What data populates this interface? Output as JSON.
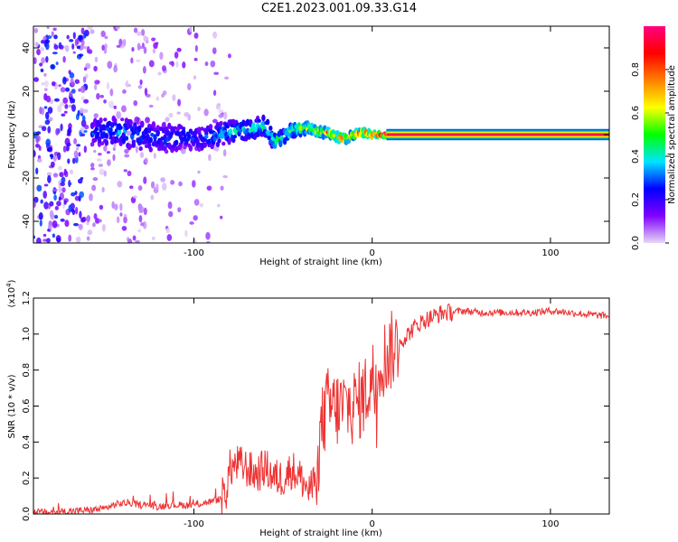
{
  "title": "C2E1.2023.001.09.33.G14",
  "chart_data": [
    {
      "type": "heatmap",
      "title": "C2E1.2023.001.09.33.G14",
      "xlabel": "Height of straight line (km)",
      "ylabel": "Frequency (Hz)",
      "xlim": [
        -190,
        133
      ],
      "ylim": [
        -50,
        50
      ],
      "x_ticks": [
        -100,
        0,
        100
      ],
      "x_tick_labels": [
        "-100",
        "0",
        "100"
      ],
      "y_ticks": [
        -40,
        -20,
        0,
        20,
        40
      ],
      "y_tick_labels": [
        "-40",
        "-20",
        "0",
        "20",
        "40"
      ],
      "colorbar": {
        "label": "Normalized spectral amplitude",
        "range": [
          0,
          1
        ],
        "ticks": [
          0.0,
          0.2,
          0.4,
          0.6,
          0.8
        ],
        "tick_labels": [
          "0.0",
          "0.2",
          "0.4",
          "0.6",
          "0.8"
        ],
        "colormap": [
          "#e6d8f5",
          "#8000ff",
          "#0000ff",
          "#00e5ff",
          "#00ff00",
          "#ffff00",
          "#ff8000",
          "#ff0000",
          "#ff0080"
        ]
      },
      "ridge": {
        "x": [
          -155,
          -145,
          -135,
          -125,
          -115,
          -105,
          -95,
          -88,
          -80,
          -72,
          -65,
          -60,
          -55,
          -50,
          -45,
          -40,
          -35,
          -30,
          -25,
          -20,
          -15,
          -10,
          -5,
          0,
          5,
          10,
          133
        ],
        "freq": [
          1,
          2,
          0,
          -1,
          -2,
          -1,
          -2,
          0,
          1,
          2,
          3,
          4,
          -3,
          -1,
          2,
          3,
          3,
          1,
          1,
          -1,
          -2,
          0,
          1,
          0,
          0,
          0,
          0
        ],
        "spread": [
          6,
          6,
          6,
          6,
          6,
          5,
          5,
          5,
          5,
          4,
          4,
          4,
          4,
          3,
          3,
          3,
          2,
          2,
          2,
          2,
          2,
          1.5,
          1.5,
          1,
          1,
          1,
          1
        ],
        "peak_amplitude": [
          0.3,
          0.35,
          0.35,
          0.3,
          0.3,
          0.3,
          0.3,
          0.35,
          0.4,
          0.45,
          0.45,
          0.45,
          0.5,
          0.5,
          0.55,
          0.6,
          0.7,
          0.75,
          0.8,
          0.8,
          0.85,
          0.85,
          0.9,
          0.95,
          0.97,
          1.0,
          1.0
        ]
      }
    },
    {
      "type": "line",
      "xlabel": "Height of straight line (km)",
      "ylabel": "SNR (10 * v/v)",
      "y_multiplier": "(x10",
      "y_multiplier_exp": "4",
      "y_multiplier_close": ")",
      "xlim": [
        -190,
        133
      ],
      "ylim": [
        0,
        1.2
      ],
      "x_ticks": [
        -100,
        0,
        100
      ],
      "x_tick_labels": [
        "-100",
        "0",
        "100"
      ],
      "y_ticks": [
        0.0,
        0.2,
        0.4,
        0.6,
        0.8,
        1.0,
        1.2
      ],
      "y_tick_labels": [
        "0.0",
        "0.2",
        "0.4",
        "0.6",
        "0.8",
        "1.0",
        "1.2"
      ],
      "color": "#ee3333",
      "series": [
        {
          "x": [
            -190,
            -180,
            -170,
            -160,
            -150,
            -145,
            -140,
            -135,
            -130,
            -125,
            -120,
            -115,
            -110,
            -105,
            -100,
            -95,
            -90,
            -86,
            -82,
            -80,
            -75,
            -70,
            -65,
            -60,
            -55,
            -50,
            -45,
            -40,
            -35,
            -32,
            -30,
            -28,
            -25,
            -20,
            -15,
            -10,
            -5,
            0,
            5,
            10,
            15,
            20,
            25,
            30,
            35,
            40,
            45,
            50,
            60,
            70,
            80,
            90,
            100,
            110,
            120,
            133
          ],
          "y": [
            0.01,
            0.01,
            0.015,
            0.02,
            0.03,
            0.05,
            0.06,
            0.06,
            0.05,
            0.05,
            0.04,
            0.05,
            0.05,
            0.05,
            0.05,
            0.06,
            0.07,
            0.08,
            0.12,
            0.25,
            0.28,
            0.25,
            0.22,
            0.26,
            0.2,
            0.2,
            0.25,
            0.2,
            0.12,
            0.18,
            0.35,
            0.5,
            0.6,
            0.58,
            0.6,
            0.6,
            0.65,
            0.75,
            0.85,
            0.9,
            0.95,
            1.0,
            1.05,
            1.08,
            1.1,
            1.12,
            1.12,
            1.13,
            1.12,
            1.12,
            1.12,
            1.12,
            1.13,
            1.12,
            1.11,
            1.1
          ]
        }
      ]
    }
  ]
}
